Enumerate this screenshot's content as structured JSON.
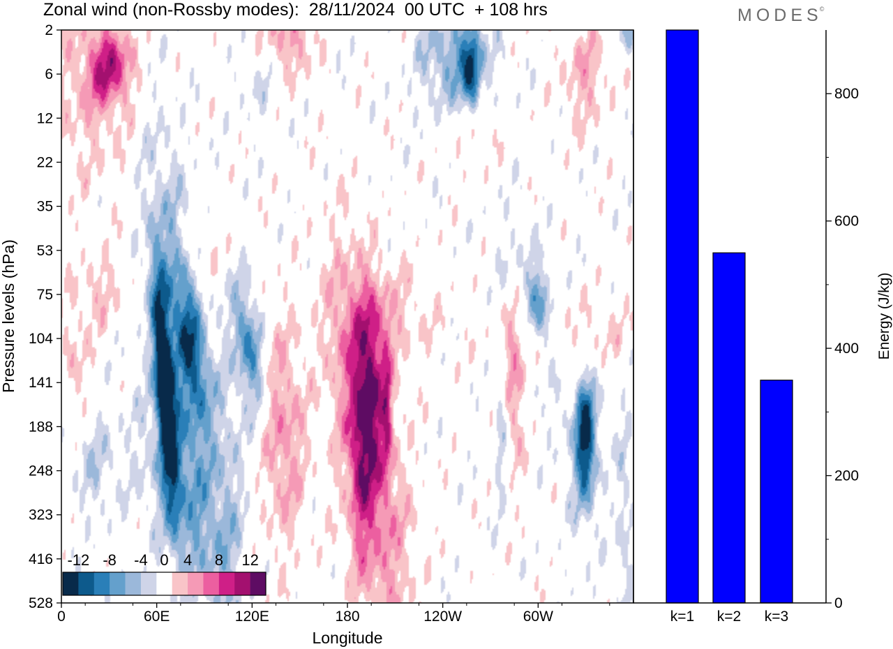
{
  "title": "Zonal wind (non-Rossby modes):  28/11/2024  00 UTC  + 108 hrs",
  "logo": "MODES",
  "logo_mark": "©",
  "chart_data": [
    {
      "type": "heatmap",
      "xlabel": "Longitude",
      "ylabel": "Pressure levels (hPa)",
      "x_ticks": [
        "0",
        "60E",
        "120E",
        "180",
        "120W",
        "60W"
      ],
      "y_ticks": [
        "2",
        "6",
        "12",
        "22",
        "35",
        "53",
        "75",
        "104",
        "141",
        "188",
        "248",
        "323",
        "416",
        "528"
      ],
      "colorbar": {
        "labels": [
          "-12",
          "-8",
          "-4",
          "0",
          "4",
          "8",
          "12"
        ],
        "bins": [
          -14,
          -12,
          -10,
          -8,
          -6,
          -4,
          -2,
          2,
          4,
          6,
          8,
          10,
          12,
          14
        ],
        "colors": [
          "#082a4a",
          "#0d5a8c",
          "#2a7fb8",
          "#64a0cc",
          "#9bb8da",
          "#cfd4e8",
          "#ffffff",
          "#f9c4c8",
          "#f59ab6",
          "#ec5fa0",
          "#cf1f87",
          "#a3106f",
          "#5e0c63"
        ]
      },
      "features": [
        {
          "lon": 65,
          "lev": 8.2,
          "slon": 4,
          "slev": 1.8,
          "amp": -15,
          "rot": -8
        },
        {
          "lon": 75,
          "lev": 7.6,
          "slon": 12,
          "slev": 3.6,
          "amp": -6,
          "rot": -8
        },
        {
          "lon": 82,
          "lev": 7.2,
          "slon": 6,
          "slev": 1.2,
          "amp": -7,
          "rot": -8
        },
        {
          "lon": 118,
          "lev": 7.2,
          "slon": 6,
          "slev": 1.0,
          "amp": -8,
          "rot": -5
        },
        {
          "lon": 70,
          "lev": 10.5,
          "slon": 18,
          "slev": 1.5,
          "amp": -3,
          "rot": -7
        },
        {
          "lon": 20,
          "lev": 10.0,
          "slon": 10,
          "slev": 0.8,
          "amp": -3,
          "rot": 0
        },
        {
          "lon": 330,
          "lev": 9.3,
          "slon": 4,
          "slev": 0.9,
          "amp": -10,
          "rot": 0
        },
        {
          "lon": 330,
          "lev": 9.3,
          "slon": 8,
          "slev": 1.6,
          "amp": -4,
          "rot": 0
        },
        {
          "lon": 302,
          "lev": 6.3,
          "slon": 4,
          "slev": 0.6,
          "amp": -6,
          "rot": -8
        },
        {
          "lon": 298,
          "lev": 6.5,
          "slon": 12,
          "slev": 1.5,
          "amp": -3,
          "rot": -6
        },
        {
          "lon": 248,
          "lev": 0.6,
          "slon": 16,
          "slev": 0.9,
          "amp": -6,
          "rot": 0
        },
        {
          "lon": 258,
          "lev": 1.0,
          "slon": 4,
          "slev": 0.7,
          "amp": -9,
          "rot": 0
        },
        {
          "lon": 277,
          "lev": 8.8,
          "slon": 3,
          "slev": 1.4,
          "amp": -4,
          "rot": 0
        },
        {
          "lon": 105,
          "lev": 11.0,
          "slon": 8,
          "slev": 3.0,
          "amp": -3,
          "rot": 0
        },
        {
          "lon": 355,
          "lev": 11.5,
          "slon": 4,
          "slev": 2.5,
          "amp": -3,
          "rot": 0
        },
        {
          "lon": 173,
          "lev": 0.2,
          "slon": 4,
          "slev": 0.3,
          "amp": -3,
          "rot": 0
        },
        {
          "lon": 125,
          "lev": 0.9,
          "slon": 10,
          "slev": 0.8,
          "amp": -2.8,
          "rot": 0
        },
        {
          "lon": 358,
          "lev": 0.1,
          "slon": 4,
          "slev": 0.3,
          "amp": -5,
          "rot": 0
        },
        {
          "lon": 188,
          "lev": 8.6,
          "slon": 12,
          "slev": 2.4,
          "amp": 7,
          "rot": -5
        },
        {
          "lon": 195,
          "lev": 8.2,
          "slon": 6,
          "slev": 1.4,
          "amp": 7,
          "rot": 0
        },
        {
          "lon": 205,
          "lev": 8.6,
          "slon": 2,
          "slev": 1.0,
          "amp": 6,
          "rot": 0
        },
        {
          "lon": 188,
          "lev": 10.0,
          "slon": 4,
          "slev": 1.5,
          "amp": 4,
          "rot": 0
        },
        {
          "lon": 205,
          "lev": 12.0,
          "slon": 14,
          "slev": 2.0,
          "amp": 3,
          "rot": 0
        },
        {
          "lon": 205,
          "lev": 6.5,
          "slon": 20,
          "slev": 0.8,
          "amp": 3,
          "rot": 0
        },
        {
          "lon": 140,
          "lev": 9.2,
          "slon": 10,
          "slev": 1.8,
          "amp": 5,
          "rot": 0
        },
        {
          "lon": 285,
          "lev": 8.0,
          "slon": 5,
          "slev": 1.3,
          "amp": 5.5,
          "rot": 0
        },
        {
          "lon": 320,
          "lev": 7.0,
          "slon": 30,
          "slev": 0.7,
          "amp": 3,
          "rot": 0
        },
        {
          "lon": 30,
          "lev": 0.8,
          "slon": 10,
          "slev": 0.6,
          "amp": 8,
          "rot": 0
        },
        {
          "lon": 20,
          "lev": 1.4,
          "slon": 20,
          "slev": 1.5,
          "amp": 3,
          "rot": 0
        },
        {
          "lon": 140,
          "lev": 0.2,
          "slon": 15,
          "slev": 0.6,
          "amp": 5,
          "rot": 0
        },
        {
          "lon": 260,
          "lev": 2.2,
          "slon": 10,
          "slev": 0.6,
          "amp": 3,
          "rot": 0
        },
        {
          "lon": 330,
          "lev": 1.0,
          "slon": 10,
          "slev": 0.8,
          "amp": 4,
          "rot": 0
        },
        {
          "lon": 25,
          "lev": 6.0,
          "slon": 10,
          "slev": 0.6,
          "amp": 3,
          "rot": 0
        },
        {
          "lon": 90,
          "lev": 5.0,
          "slon": 10,
          "slev": 0.5,
          "amp": 2.5,
          "rot": 0
        },
        {
          "lon": 8,
          "lev": 7.5,
          "slon": 6,
          "slev": 1.0,
          "amp": 3,
          "rot": 0
        }
      ]
    },
    {
      "type": "bar",
      "categories": [
        "k=1",
        "k=2",
        "k=3"
      ],
      "values": [
        900,
        550,
        350
      ],
      "ylabel": "Energy (J/kg)",
      "ylim": [
        0,
        900
      ],
      "y_ticks": [
        0,
        200,
        400,
        600,
        800
      ],
      "bar_color": "#0000ff"
    }
  ]
}
